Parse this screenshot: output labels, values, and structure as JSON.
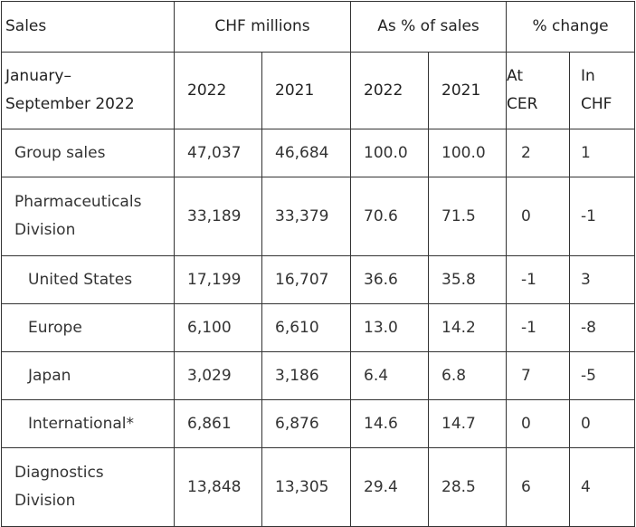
{
  "header": {
    "sales_label": "Sales",
    "period_label_line1": "January–",
    "period_label_line2": "September 2022",
    "chf_millions": "CHF millions",
    "as_pct_sales": "As % of sales",
    "pct_change": "% change",
    "year_2022": "2022",
    "year_2021": "2021",
    "at_cer_line1": "At",
    "at_cer_line2": "CER",
    "in_chf_line1": "In",
    "in_chf_line2": "CHF"
  },
  "rows": [
    {
      "label": "Group sales",
      "chf_2022": "47,037",
      "chf_2021": "46,684",
      "pct_2022": "100.0",
      "pct_2021": "100.0",
      "at_cer": "2",
      "in_chf": "1"
    },
    {
      "label_line1": "Pharmaceuticals",
      "label_line2": "Division",
      "chf_2022": "33,189",
      "chf_2021": "33,379",
      "pct_2022": "70.6",
      "pct_2021": "71.5",
      "at_cer": "0",
      "in_chf": "-1"
    },
    {
      "label": "United States",
      "chf_2022": "17,199",
      "chf_2021": "16,707",
      "pct_2022": "36.6",
      "pct_2021": "35.8",
      "at_cer": "-1",
      "in_chf": "3"
    },
    {
      "label": "Europe",
      "chf_2022": "6,100",
      "chf_2021": "6,610",
      "pct_2022": "13.0",
      "pct_2021": "14.2",
      "at_cer": "-1",
      "in_chf": "-8"
    },
    {
      "label": "Japan",
      "chf_2022": "3,029",
      "chf_2021": "3,186",
      "pct_2022": "6.4",
      "pct_2021": "6.8",
      "at_cer": "7",
      "in_chf": "-5"
    },
    {
      "label": "International*",
      "chf_2022": "6,861",
      "chf_2021": "6,876",
      "pct_2022": "14.6",
      "pct_2021": "14.7",
      "at_cer": "0",
      "in_chf": "0"
    },
    {
      "label_line1": "Diagnostics",
      "label_line2": "Division",
      "chf_2022": "13,848",
      "chf_2021": "13,305",
      "pct_2022": "29.4",
      "pct_2021": "28.5",
      "at_cer": "6",
      "in_chf": "4"
    }
  ]
}
